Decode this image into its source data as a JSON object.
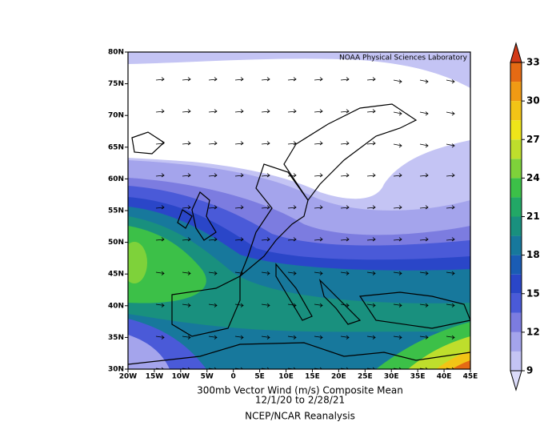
{
  "title": "300mb Vector Wind (m/s) Composite Mean",
  "period": "12/1/20  to 2/28/21",
  "source": "NCEP/NCAR Reanalysis",
  "credit": "NOAA Physical Sciences Laboratory",
  "map": {
    "lat_labels": [
      "80N",
      "75N",
      "70N",
      "65N",
      "60N",
      "55N",
      "50N",
      "45N",
      "40N",
      "35N",
      "30N"
    ],
    "lon_labels": [
      "20W",
      "15W",
      "10W",
      "5W",
      "0",
      "5E",
      "10E",
      "15E",
      "20E",
      "25E",
      "30E",
      "35E",
      "40E",
      "45E"
    ]
  },
  "colorbar": {
    "lim": [
      9,
      33
    ],
    "ticks": [
      9,
      12,
      15,
      18,
      21,
      24,
      27,
      30,
      33
    ],
    "colors": [
      "#dcdcfa",
      "#c4c4f4",
      "#a4a4ec",
      "#7c7ce0",
      "#4a5ad8",
      "#2a46c8",
      "#1a5cb4",
      "#17789c",
      "#19907e",
      "#22a866",
      "#3cc048",
      "#7ed23a",
      "#bede2c",
      "#eee41a",
      "#f2c416",
      "#f09a14",
      "#e46a14",
      "#d23a18"
    ]
  }
}
